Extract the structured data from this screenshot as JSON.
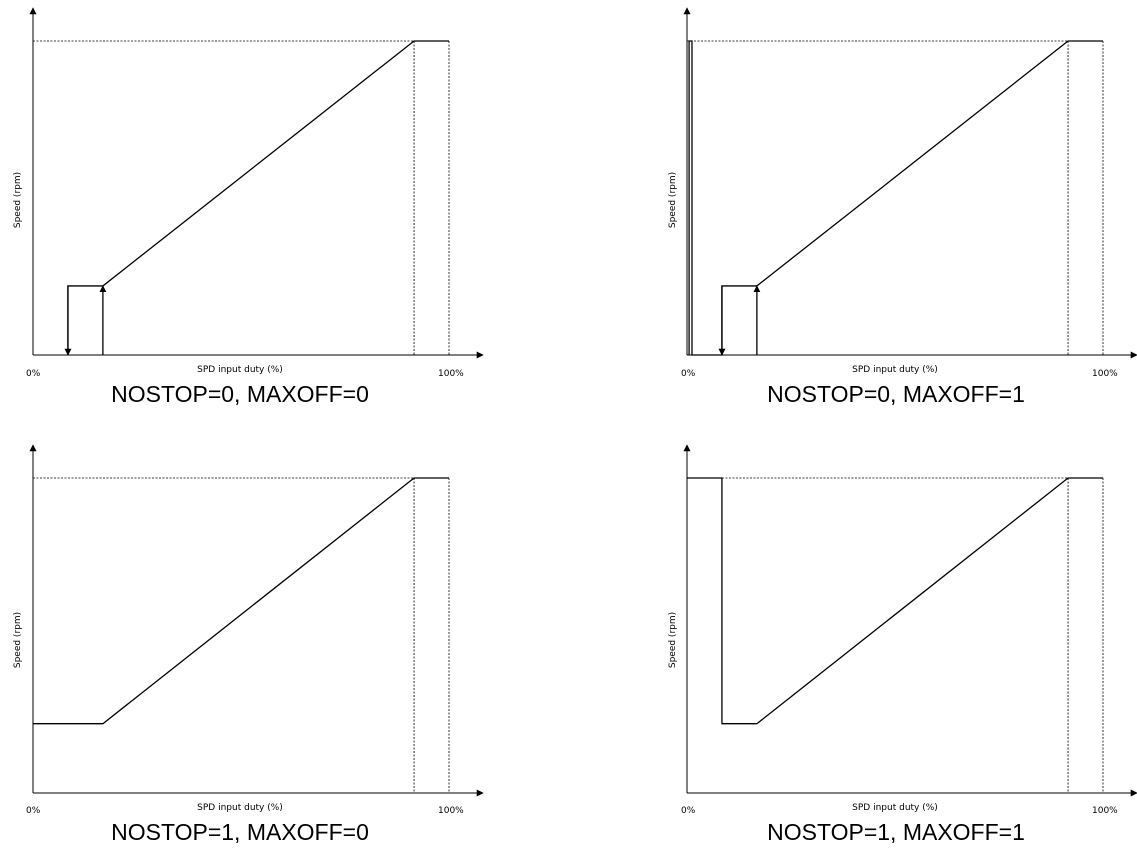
{
  "chart_data": [
    {
      "type": "line",
      "title": "NOSTOP=0, MAXOFF=0",
      "xlabel": "SPD input duty (%)",
      "ylabel": "Speed (rpm)",
      "xtick_labels": [
        "0%",
        "100%"
      ],
      "xlim": [
        0,
        100
      ],
      "ylim": [
        0,
        100
      ],
      "grid": false,
      "curve": [
        [
          8.4,
          22
        ],
        [
          8.4,
          0
        ],
        [
          8.4,
          22
        ],
        [
          16.8,
          22
        ],
        [
          91.6,
          100
        ],
        [
          100,
          100
        ]
      ],
      "guides": [
        [
          [
            0,
            100
          ],
          [
            91.6,
            100
          ]
        ],
        [
          [
            91.6,
            100
          ],
          [
            91.6,
            0
          ]
        ],
        [
          [
            100,
            100
          ],
          [
            100,
            0
          ]
        ]
      ],
      "arrows": [
        {
          "x": 8.4,
          "from": 22,
          "to": 0
        },
        {
          "x": 16.8,
          "from": 0,
          "to": 22
        }
      ]
    },
    {
      "type": "line",
      "title": "NOSTOP=0, MAXOFF=1",
      "xlabel": "SPD input duty (%)",
      "ylabel": "Speed (rpm)",
      "xtick_labels": [
        "0%",
        "100%"
      ],
      "xlim": [
        0,
        100
      ],
      "ylim": [
        0,
        100
      ],
      "grid": false,
      "curve": [
        [
          0.5,
          0
        ],
        [
          0.5,
          100
        ],
        [
          1.2,
          100
        ],
        [
          1.2,
          0
        ],
        [
          8.4,
          0
        ],
        [
          8.4,
          22
        ],
        [
          16.8,
          22
        ],
        [
          91.6,
          100
        ],
        [
          100,
          100
        ]
      ],
      "guides": [
        [
          [
            0,
            100
          ],
          [
            91.6,
            100
          ]
        ],
        [
          [
            91.6,
            100
          ],
          [
            91.6,
            0
          ]
        ],
        [
          [
            100,
            100
          ],
          [
            100,
            0
          ]
        ]
      ],
      "arrows": [
        {
          "x": 8.4,
          "from": 22,
          "to": 0
        },
        {
          "x": 16.8,
          "from": 0,
          "to": 22
        }
      ]
    },
    {
      "type": "line",
      "title": "NOSTOP=1, MAXOFF=0",
      "xlabel": "SPD input duty (%)",
      "ylabel": "Speed (rpm)",
      "xtick_labels": [
        "0%",
        "100%"
      ],
      "xlim": [
        0,
        100
      ],
      "ylim": [
        0,
        100
      ],
      "grid": false,
      "curve": [
        [
          0,
          22
        ],
        [
          16.8,
          22
        ],
        [
          91.6,
          100
        ],
        [
          100,
          100
        ]
      ],
      "guides": [
        [
          [
            0,
            100
          ],
          [
            91.6,
            100
          ]
        ],
        [
          [
            91.6,
            100
          ],
          [
            91.6,
            0
          ]
        ],
        [
          [
            100,
            100
          ],
          [
            100,
            0
          ]
        ]
      ],
      "arrows": []
    },
    {
      "type": "line",
      "title": "NOSTOP=1, MAXOFF=1",
      "xlabel": "SPD input duty (%)",
      "ylabel": "Speed (rpm)",
      "xtick_labels": [
        "0%",
        "100%"
      ],
      "xlim": [
        0,
        100
      ],
      "ylim": [
        0,
        100
      ],
      "grid": false,
      "curve": [
        [
          0,
          100
        ],
        [
          8.4,
          100
        ],
        [
          8.4,
          22
        ],
        [
          16.8,
          22
        ],
        [
          91.6,
          100
        ],
        [
          100,
          100
        ]
      ],
      "guides": [
        [
          [
            8.4,
            100
          ],
          [
            91.6,
            100
          ]
        ],
        [
          [
            91.6,
            100
          ],
          [
            91.6,
            0
          ]
        ],
        [
          [
            100,
            100
          ],
          [
            100,
            0
          ]
        ]
      ],
      "arrows": []
    }
  ]
}
